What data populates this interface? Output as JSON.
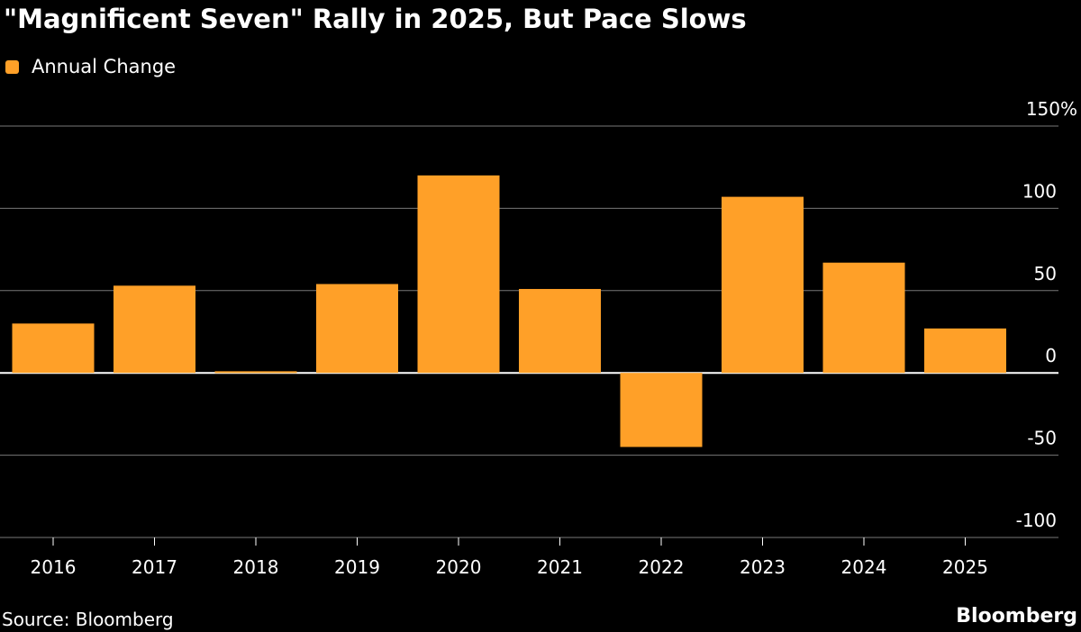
{
  "chart_data": {
    "type": "bar",
    "title": "\"Magnificent Seven\" Rally in 2025, But Pace Slows",
    "categories": [
      "2016",
      "2017",
      "2018",
      "2019",
      "2020",
      "2021",
      "2022",
      "2023",
      "2024",
      "2025"
    ],
    "series": [
      {
        "name": "Annual Change",
        "values": [
          30,
          53,
          1,
          54,
          120,
          51,
          -45,
          107,
          67,
          27
        ],
        "color": "#FFA028"
      }
    ],
    "ylim": [
      -100,
      150
    ],
    "yticks": [
      150,
      100,
      50,
      0,
      -50,
      -100
    ],
    "ytick_labels": [
      "150%",
      "100",
      "50",
      "0",
      "-50",
      "-100"
    ],
    "y_axis_side": "right",
    "grid": true,
    "legend_placement": "top-left",
    "source": "Source: Bloomberg",
    "brand": "Bloomberg"
  }
}
